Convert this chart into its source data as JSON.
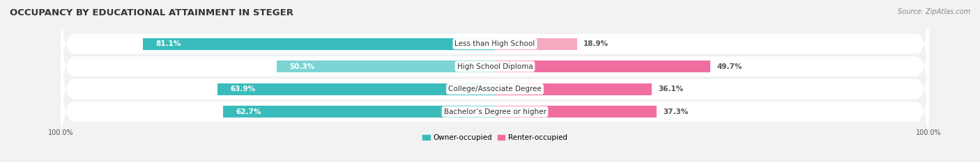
{
  "title": "OCCUPANCY BY EDUCATIONAL ATTAINMENT IN STEGER",
  "source": "Source: ZipAtlas.com",
  "categories": [
    "Less than High School",
    "High School Diploma",
    "College/Associate Degree",
    "Bachelor’s Degree or higher"
  ],
  "owner_values": [
    81.1,
    50.3,
    63.9,
    62.7
  ],
  "renter_values": [
    18.9,
    49.7,
    36.1,
    37.3
  ],
  "owner_color_dark": "#3BBCBC",
  "owner_color_light": "#7DD4D4",
  "renter_color_dark": "#F06EA0",
  "renter_color_light": "#F5AABF",
  "background_color": "#f2f2f2",
  "row_bg_color": "#e8e8e8",
  "title_fontsize": 9.5,
  "source_fontsize": 7,
  "label_fontsize": 7.5,
  "value_fontsize": 7.5,
  "tick_fontsize": 7,
  "legend_fontsize": 7.5
}
